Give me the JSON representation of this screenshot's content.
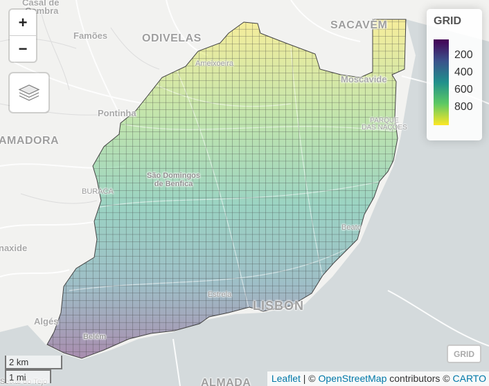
{
  "map_labels": {
    "casal": "Casal de",
    "cambra": "Cambra",
    "famoes": "Famões",
    "odivelas": "ODIVELAS",
    "sacavem": "SACAVÉM",
    "ameixoeira": "Ameixoeira",
    "moscavide": "Moscavide",
    "pontinha": "Pontinha",
    "amadora": "AMADORA",
    "parque_line1": "PARQUE",
    "parque_line2": "DAS NAÇÕES",
    "buraca": "BURACA",
    "sao_domingos_line1": "São Domingos",
    "sao_domingos_line2": "de Benfica",
    "beato": "Beato",
    "carnaxide": "naxide",
    "estrela": "Estrela",
    "lisbon": "LISBON",
    "alges": "Algés",
    "belem": "Belém",
    "almada": "ALMADA",
    "seixal": "Seixal do Tejo"
  },
  "controls": {
    "zoom_in": "+",
    "zoom_out": "−",
    "layers_icon": "layers-icon",
    "grid_toggle": "GRID"
  },
  "legend": {
    "title": "GRID",
    "labels": [
      "200",
      "400",
      "600",
      "800"
    ],
    "colors": [
      "#440154",
      "#3b528b",
      "#21908c",
      "#5dc963",
      "#fde725"
    ]
  },
  "scale": {
    "metric": "2 km",
    "imperial": "1 mi"
  },
  "attribution": {
    "leaflet": "Leaflet",
    "sep1": " | © ",
    "osm": "OpenStreetMap",
    "contributors": " contributors © ",
    "carto": "CARTO"
  }
}
